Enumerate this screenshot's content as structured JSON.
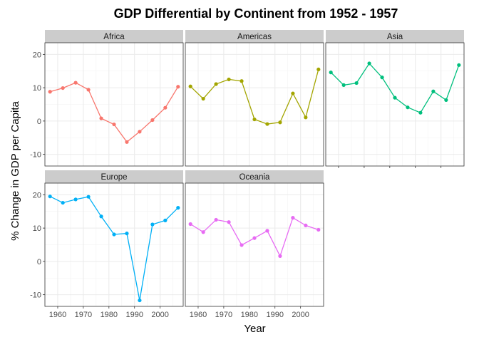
{
  "chart_data": {
    "type": "line",
    "title": "GDP Differential by Continent from 1952 - 1957",
    "xlabel": "Year",
    "ylabel": "% Change in GDP per Capita",
    "xlim": [
      1955,
      2009
    ],
    "ylim": [
      -13.5,
      23.5
    ],
    "x_ticks": [
      1960,
      1970,
      1980,
      1990,
      2000
    ],
    "y_ticks": [
      -10,
      0,
      10,
      20
    ],
    "grid": true,
    "x": [
      1957,
      1962,
      1967,
      1972,
      1977,
      1982,
      1987,
      1992,
      1997,
      2002,
      2007
    ],
    "facets": [
      {
        "name": "Africa",
        "color": "#F8766D",
        "values": [
          8.8,
          9.9,
          11.5,
          9.4,
          0.8,
          -1.0,
          -6.3,
          -3.2,
          0.3,
          4.0,
          10.3
        ]
      },
      {
        "name": "Americas",
        "color": "#A3A500",
        "values": [
          10.4,
          6.7,
          11.1,
          12.5,
          12.0,
          0.5,
          -0.9,
          -0.4,
          8.3,
          1.1,
          15.5
        ]
      },
      {
        "name": "Asia",
        "color": "#00BF7D",
        "values": [
          14.6,
          10.8,
          11.4,
          17.3,
          13.1,
          7.0,
          4.1,
          2.5,
          8.9,
          6.3,
          16.8
        ]
      },
      {
        "name": "Europe",
        "color": "#00B0F6",
        "values": [
          19.5,
          17.6,
          18.6,
          19.4,
          13.5,
          8.1,
          8.4,
          -11.7,
          11.1,
          12.3,
          16.1
        ]
      },
      {
        "name": "Oceania",
        "color": "#E76BF3",
        "values": [
          11.2,
          8.8,
          12.5,
          11.8,
          4.9,
          7.0,
          9.2,
          1.6,
          13.1,
          10.8,
          9.5
        ]
      }
    ]
  }
}
